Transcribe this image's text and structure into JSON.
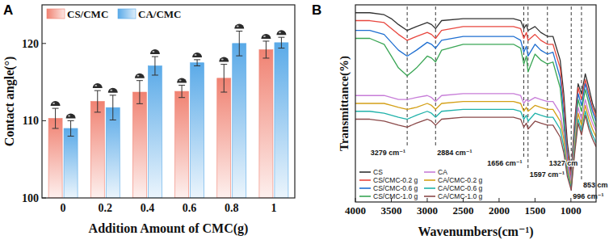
{
  "chart_data": [
    {
      "type": "bar",
      "title": "A",
      "x_label": "Addition Amount of CMC(g)",
      "y_label": "Contact angle(°)",
      "categories": [
        0,
        0.2,
        0.4,
        0.6,
        0.8,
        1
      ],
      "series": [
        {
          "name": "CS/CMC",
          "color": "#f08272",
          "values": [
            110.3,
            112.5,
            113.7,
            113.8,
            115.5,
            119.2
          ],
          "errors": [
            1.3,
            1.4,
            1.5,
            0.8,
            1.8,
            1.1
          ]
        },
        {
          "name": "CA/CMC",
          "color": "#5aaae8",
          "values": [
            109.0,
            111.7,
            117.1,
            117.5,
            120.0,
            120.1
          ],
          "errors": [
            1.0,
            1.6,
            1.2,
            0.4,
            1.6,
            0.7
          ]
        }
      ],
      "ylim": [
        100,
        125
      ],
      "yticks": [
        100,
        110,
        120
      ],
      "grid": false,
      "legend": "top-left"
    },
    {
      "type": "line",
      "title": "B",
      "x_label": "Wavenumbers(cm⁻¹)",
      "y_label": "Transmittance(%)",
      "x": [
        4000,
        3800,
        3600,
        3500,
        3400,
        3279,
        3150,
        3000,
        2940,
        2884,
        2800,
        2500,
        2200,
        2000,
        1800,
        1700,
        1656,
        1620,
        1597,
        1500,
        1420,
        1327,
        1250,
        1150,
        1100,
        1050,
        996,
        950,
        900,
        853,
        800,
        750,
        700,
        650
      ],
      "series": [
        {
          "name": "CS",
          "color": "#333333",
          "values": [
            96,
            96,
            95,
            93,
            90,
            87,
            89,
            91,
            90,
            88,
            92,
            93,
            93,
            93,
            93,
            92,
            88,
            90,
            87,
            89,
            86,
            84,
            84,
            72,
            55,
            30,
            15,
            40,
            60,
            55,
            65,
            58,
            50,
            45
          ]
        },
        {
          "name": "CS/CMC-0.2 g",
          "color": "#e8473f",
          "values": [
            92,
            92,
            91,
            88,
            85,
            82,
            84,
            86,
            85,
            83,
            87,
            89,
            89,
            89,
            89,
            88,
            83,
            86,
            82,
            85,
            82,
            80,
            80,
            68,
            50,
            25,
            12,
            38,
            58,
            52,
            62,
            55,
            48,
            43
          ]
        },
        {
          "name": "CS/CMC-0.6 g",
          "color": "#1f6fd1",
          "values": [
            87,
            87,
            85,
            81,
            77,
            74,
            77,
            81,
            80,
            78,
            82,
            84,
            84,
            84,
            84,
            82,
            76,
            79,
            74,
            80,
            77,
            75,
            76,
            63,
            45,
            22,
            10,
            35,
            55,
            49,
            60,
            53,
            46,
            41
          ]
        },
        {
          "name": "CS/CMC-1.0 g",
          "color": "#3aa655",
          "values": [
            83,
            83,
            80,
            74,
            68,
            64,
            68,
            74,
            73,
            71,
            77,
            80,
            80,
            80,
            80,
            78,
            70,
            74,
            66,
            75,
            72,
            70,
            71,
            58,
            40,
            18,
            8,
            33,
            52,
            46,
            57,
            50,
            43,
            38
          ]
        },
        {
          "name": "CA",
          "color": "#c77dd8",
          "values": [
            54,
            54,
            54,
            53,
            52,
            52,
            53,
            54,
            53,
            51,
            54,
            55,
            55,
            55,
            55,
            54,
            50,
            52,
            51,
            53,
            52,
            51,
            51,
            45,
            35,
            20,
            10,
            30,
            48,
            42,
            52,
            45,
            40,
            36
          ]
        },
        {
          "name": "CA/CMC-0.2 g",
          "color": "#d4a017",
          "values": [
            50,
            50,
            50,
            49,
            48,
            47,
            48,
            50,
            49,
            47,
            50,
            51,
            51,
            51,
            51,
            50,
            46,
            48,
            46,
            49,
            48,
            47,
            47,
            41,
            32,
            17,
            8,
            28,
            45,
            39,
            49,
            42,
            37,
            33
          ]
        },
        {
          "name": "CA/CMC-0.6 g",
          "color": "#20b2aa",
          "values": [
            46,
            46,
            45,
            44,
            43,
            42,
            44,
            46,
            45,
            43,
            46,
            47,
            47,
            47,
            47,
            46,
            42,
            44,
            41,
            45,
            44,
            43,
            43,
            37,
            28,
            15,
            7,
            26,
            42,
            36,
            46,
            39,
            34,
            30
          ]
        },
        {
          "name": "CA/CMC-1.0 g",
          "color": "#8b4a4a",
          "values": [
            42,
            42,
            41,
            40,
            39,
            38,
            40,
            42,
            41,
            39,
            42,
            43,
            43,
            43,
            43,
            42,
            38,
            40,
            37,
            41,
            40,
            39,
            39,
            33,
            25,
            13,
            6,
            24,
            40,
            34,
            44,
            37,
            32,
            28
          ]
        }
      ],
      "xlim": [
        4000,
        650
      ],
      "xticks": [
        4000,
        3500,
        3000,
        2500,
        2000,
        1500,
        1000
      ],
      "ylim": [
        0,
        100
      ],
      "tick_labels": "x",
      "grid": false,
      "legend": "bottom-left",
      "annotations": [
        {
          "x": 3279,
          "label": "3279 cm⁻¹"
        },
        {
          "x": 2884,
          "label": "2884 cm⁻¹"
        },
        {
          "x": 1656,
          "label": "1656 cm⁻¹"
        },
        {
          "x": 1597,
          "label": "1597 cm⁻¹"
        },
        {
          "x": 1327,
          "label": "1327 cm"
        },
        {
          "x": 996,
          "label": "996 cm⁻¹"
        },
        {
          "x": 853,
          "label": "853 cm"
        }
      ]
    }
  ]
}
